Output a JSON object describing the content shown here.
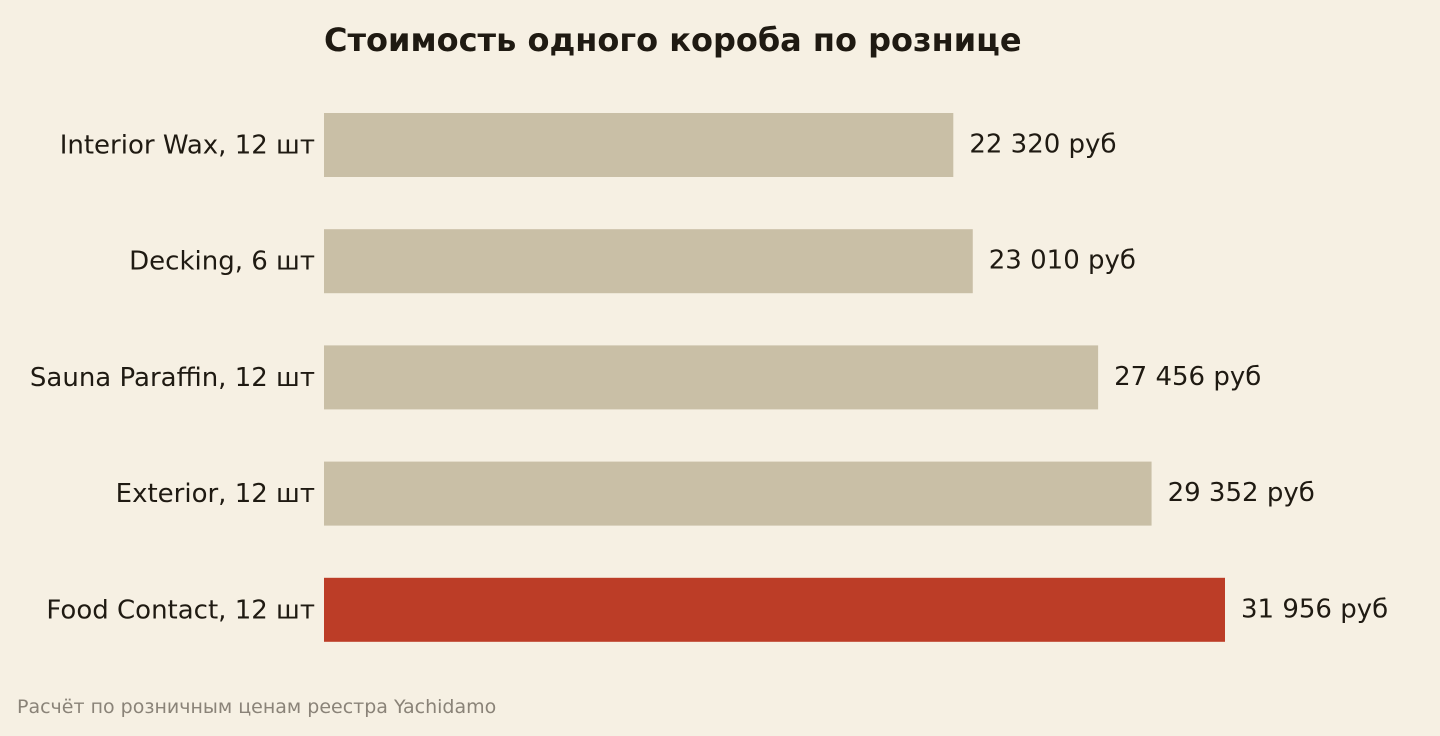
{
  "colors": {
    "background": "#f6f0e3",
    "bar_default": "#c9bfa6",
    "bar_highlight": "#bc3d27",
    "text": "#1f1a12",
    "footnote": "#8a8378"
  },
  "chart_data": {
    "type": "bar",
    "orientation": "horizontal",
    "title": "Стоимость одного короба по рознице",
    "categories": [
      "Interior Wax, 12 шт",
      "Decking, 6 шт",
      "Sauna Paraffin, 12 шт",
      "Exterior, 12 шт",
      "Food Contact, 12 шт"
    ],
    "values": [
      22320,
      23010,
      27456,
      29352,
      31956
    ],
    "value_labels": [
      "22 320 руб",
      "23 010 руб",
      "27 456 руб",
      "29 352 руб",
      "31 956 руб"
    ],
    "highlight": "Food Contact, 12 шт",
    "xlim": [
      0,
      38000
    ],
    "grid": false,
    "xlabel": "",
    "ylabel": ""
  },
  "footnote": "Расчёт по розничным ценам реестра Yachidamo"
}
